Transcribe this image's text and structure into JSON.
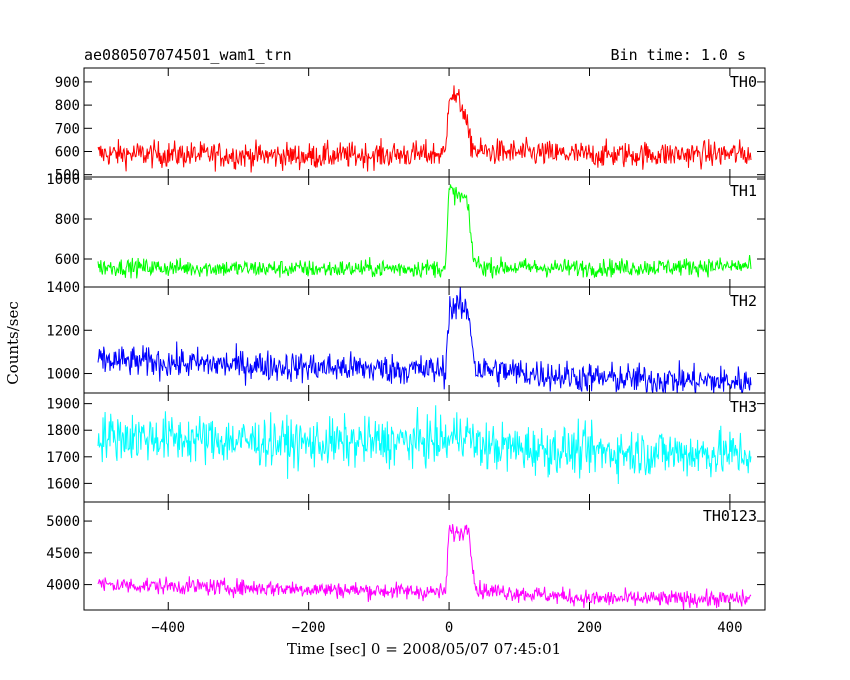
{
  "header": {
    "file_title": "ae080507074501_wam1_trn",
    "bin_time": "Bin time: 1.0 s"
  },
  "chart_data": {
    "type": "line",
    "title": "ae080507074501_wam1_trn",
    "subtitle": "Bin time: 1.0 s",
    "xlabel": "Time [sec] 0 = 2008/05/07 07:45:01",
    "ylabel": "Counts/sec",
    "xlim": [
      -520,
      450
    ],
    "x_ticks": [
      -400,
      -200,
      0,
      200,
      400
    ],
    "x_tick_labels": [
      "−400",
      "−200",
      "0",
      "200",
      "400"
    ],
    "grid": false,
    "panels": [
      {
        "name": "TH0",
        "color": "#ff0000",
        "ylim": [
          490,
          960
        ],
        "y_ticks": [
          500,
          600,
          700,
          800,
          900
        ],
        "noise": 28,
        "key_points": [
          [
            -500,
            590
          ],
          [
            -200,
            580
          ],
          [
            -5,
            590
          ],
          [
            0,
            860
          ],
          [
            10,
            830
          ],
          [
            20,
            790
          ],
          [
            30,
            640
          ],
          [
            40,
            600
          ],
          [
            200,
            585
          ],
          [
            430,
            590
          ]
        ]
      },
      {
        "name": "TH1",
        "color": "#00ff00",
        "ylim": [
          460,
          1010
        ],
        "y_ticks": [
          600,
          800,
          1000
        ],
        "noise": 22,
        "key_points": [
          [
            -500,
            560
          ],
          [
            -200,
            550
          ],
          [
            -5,
            555
          ],
          [
            0,
            950
          ],
          [
            10,
            920
          ],
          [
            25,
            900
          ],
          [
            35,
            600
          ],
          [
            45,
            560
          ],
          [
            200,
            555
          ],
          [
            430,
            565
          ]
        ]
      },
      {
        "name": "TH2",
        "color": "#0000ff",
        "ylim": [
          910,
          1400
        ],
        "y_ticks": [
          1000,
          1200,
          1400
        ],
        "noise": 35,
        "key_points": [
          [
            -500,
            1060
          ],
          [
            -200,
            1030
          ],
          [
            -5,
            1015
          ],
          [
            0,
            1300
          ],
          [
            15,
            1310
          ],
          [
            28,
            1280
          ],
          [
            38,
            1020
          ],
          [
            200,
            980
          ],
          [
            430,
            960
          ]
        ]
      },
      {
        "name": "TH3",
        "color": "#00ffff",
        "ylim": [
          1530,
          1940
        ],
        "y_ticks": [
          1600,
          1700,
          1800,
          1900
        ],
        "noise": 45,
        "key_points": [
          [
            -500,
            1780
          ],
          [
            -200,
            1750
          ],
          [
            0,
            1760
          ],
          [
            20,
            1800
          ],
          [
            40,
            1740
          ],
          [
            200,
            1720
          ],
          [
            430,
            1710
          ]
        ]
      },
      {
        "name": "TH0123",
        "color": "#ff00ff",
        "ylim": [
          3600,
          5300
        ],
        "y_ticks": [
          4000,
          4500,
          5000
        ],
        "noise": 65,
        "key_points": [
          [
            -500,
            4000
          ],
          [
            -200,
            3930
          ],
          [
            -5,
            3880
          ],
          [
            0,
            4850
          ],
          [
            15,
            4800
          ],
          [
            28,
            4900
          ],
          [
            38,
            3920
          ],
          [
            200,
            3780
          ],
          [
            430,
            3770
          ]
        ]
      }
    ]
  }
}
